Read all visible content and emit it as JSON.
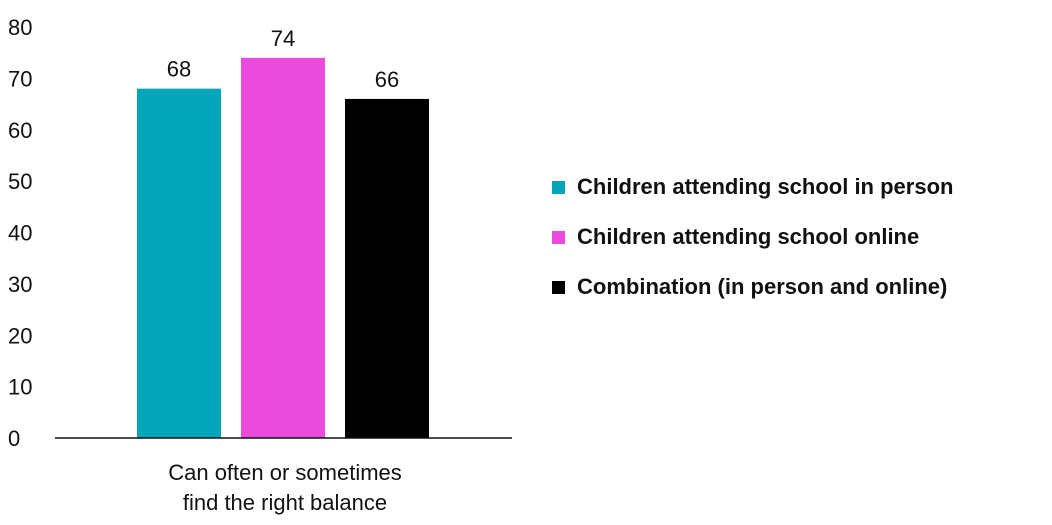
{
  "chart_data": {
    "type": "bar",
    "categories": [
      "Can often or sometimes\nfind the right balance"
    ],
    "series": [
      {
        "name": "Children attending school in person",
        "color": "#00a6b8",
        "values": [
          68
        ]
      },
      {
        "name": "Children attending school online",
        "color": "#ea4bdc",
        "values": [
          74
        ]
      },
      {
        "name": "Combination (in person and online)",
        "color": "#000000",
        "values": [
          66
        ]
      }
    ],
    "ylim": [
      0,
      80
    ],
    "yticks": [
      0,
      10,
      20,
      30,
      40,
      50,
      60,
      70,
      80
    ],
    "grid": false,
    "legend_position": "right",
    "data_labels": [
      "68",
      "74",
      "66"
    ]
  }
}
